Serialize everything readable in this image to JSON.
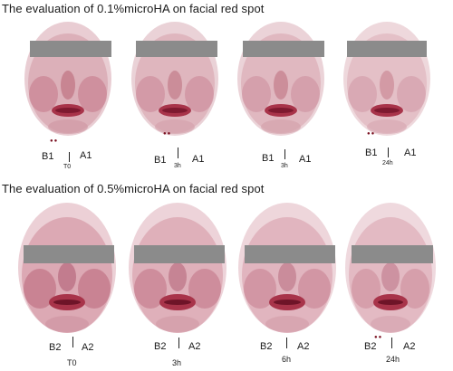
{
  "sections": [
    {
      "title": "The evaluation of 0.1%microHA on facial red spot",
      "panels": [
        {
          "b": "B1",
          "a": "A1",
          "time": "T0"
        },
        {
          "b": "B1",
          "a": "A1",
          "time": "3h"
        },
        {
          "b": "B1",
          "a": "A1",
          "time": "3h"
        },
        {
          "b": "B1",
          "a": "A1",
          "time": "24h"
        }
      ]
    },
    {
      "title": "The evaluation of 0.5%microHA on facial red spot",
      "panels": [
        {
          "b": "B2",
          "a": "A2",
          "time": "T0"
        },
        {
          "b": "B2",
          "a": "A2",
          "time": "3h"
        },
        {
          "b": "B2",
          "a": "A2",
          "time": "6h"
        },
        {
          "b": "B2",
          "a": "A2",
          "time": "24h"
        }
      ]
    }
  ],
  "colors": {
    "skin_light": "#f0dde0",
    "skin_mid": "#d7a7b0",
    "redness": "#a8344a",
    "lips": "#b03a52",
    "redaction_bar": "#8b8b8b"
  }
}
